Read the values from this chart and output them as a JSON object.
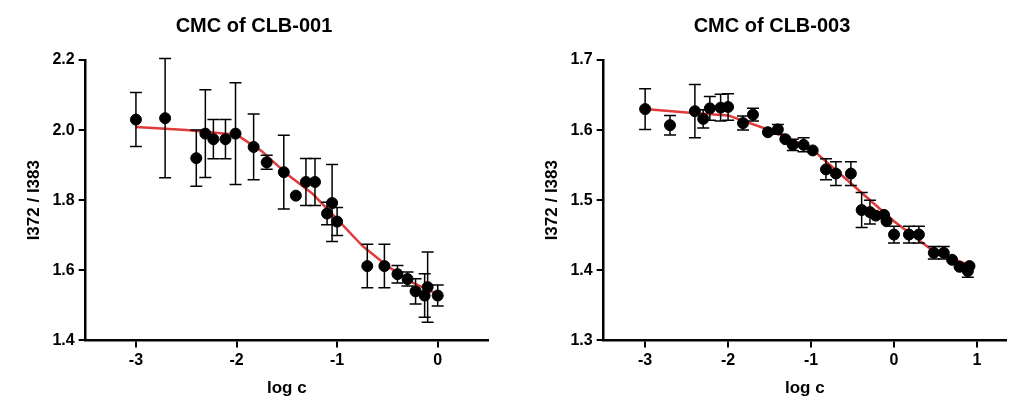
{
  "chart_data": [
    {
      "type": "scatter",
      "title": "CMC of CLB-001",
      "xlabel": "log c",
      "ylabel": "I372 / I383",
      "xlim": [
        -3.5,
        0.5
      ],
      "xticks": [
        -3,
        -2,
        -1,
        0
      ],
      "ylim": [
        1.4,
        2.2
      ],
      "yticks": [
        {
          "value": 1.4,
          "label": "1.4"
        },
        {
          "value": 1.6,
          "label": "1.6"
        },
        {
          "value": 1.8,
          "label": "1.8"
        },
        {
          "value": 2,
          "label": "2.0"
        },
        {
          "value": 2.2,
          "label": "2.2"
        }
      ],
      "grid": false,
      "legend": false,
      "series": [
        {
          "marker": "circle",
          "color": "#000000",
          "x": [
            -3.0,
            -2.71,
            -2.4,
            -2.31,
            -2.23,
            -2.11,
            -2.01,
            -1.83,
            -1.7,
            -1.53,
            -1.41,
            -1.31,
            -1.22,
            -1.1,
            -1.05,
            -1.0,
            -0.7,
            -0.53,
            -0.4,
            -0.3,
            -0.22,
            -0.13,
            -0.1,
            0.0
          ],
          "values": [
            2.03,
            2.034,
            1.92,
            1.99,
            1.974,
            1.974,
            1.99,
            1.952,
            1.908,
            1.88,
            1.813,
            1.852,
            1.852,
            1.762,
            1.792,
            1.739,
            1.612,
            1.612,
            1.589,
            1.575,
            1.54,
            1.528,
            1.552,
            1.528
          ],
          "errors": [
            0.077,
            0.17,
            0.08,
            0.125,
            0.056,
            0.056,
            0.145,
            0.094,
            0.02,
            0.105,
            null,
            0.067,
            0.067,
            0.032,
            0.11,
            0.04,
            0.062,
            0.062,
            0.025,
            0.02,
            0.036,
            0.062,
            0.1,
            0.03
          ]
        },
        {
          "type": "line",
          "marker": "none",
          "color": "#e03a3a",
          "x": [
            -3,
            -2.5,
            -2,
            -1.75,
            -1.5,
            -1.25,
            -1,
            -0.75,
            -0.5,
            -0.25,
            0
          ],
          "values": [
            2.009,
            2.0,
            1.987,
            1.94,
            1.875,
            1.82,
            1.746,
            1.67,
            1.612,
            1.565,
            1.531
          ]
        }
      ]
    },
    {
      "type": "scatter",
      "title": "CMC of CLB-003",
      "xlabel": "log c",
      "ylabel": "I372 / I383",
      "xlim": [
        -3.5,
        1.35
      ],
      "xticks": [
        -3,
        -2,
        -1,
        0,
        1
      ],
      "ylim": [
        1.3,
        1.7
      ],
      "yticks": [
        1.3,
        1.4,
        1.5,
        1.6,
        1.7
      ],
      "grid": false,
      "legend": false,
      "series": [
        {
          "marker": "circle",
          "color": "#000000",
          "x": [
            -3.0,
            -2.7,
            -2.4,
            -2.3,
            -2.22,
            -2.09,
            -2.0,
            -1.82,
            -1.7,
            -1.52,
            -1.4,
            -1.31,
            -1.22,
            -1.09,
            -0.98,
            -0.82,
            -0.7,
            -0.52,
            -0.39,
            -0.29,
            -0.22,
            -0.12,
            -0.09,
            0.0,
            0.18,
            0.3,
            0.48,
            0.6,
            0.7,
            0.79,
            0.89,
            0.91
          ],
          "values": [
            1.63,
            1.607,
            1.627,
            1.616,
            1.631,
            1.632,
            1.633,
            1.61,
            1.622,
            1.597,
            1.601,
            1.587,
            1.579,
            1.579,
            1.571,
            1.544,
            1.538,
            1.538,
            1.486,
            1.483,
            1.478,
            1.479,
            1.47,
            1.451,
            1.451,
            1.451,
            1.425,
            1.425,
            1.415,
            1.405,
            1.399,
            1.406
          ],
          "errors": [
            0.029,
            0.014,
            0.038,
            0.013,
            0.017,
            0.019,
            0.019,
            0.01,
            0.009,
            null,
            0.007,
            null,
            0.008,
            0.01,
            null,
            0.015,
            0.017,
            0.017,
            0.025,
            0.017,
            null,
            null,
            null,
            0.012,
            0.012,
            0.012,
            0.009,
            0.009,
            null,
            null,
            0.009,
            null
          ]
        },
        {
          "type": "line",
          "marker": "none",
          "color": "#e03a3a",
          "x": [
            -3,
            -2.5,
            -2,
            -1.5,
            -1,
            -0.5,
            0,
            0.5,
            0.9
          ],
          "values": [
            1.63,
            1.625,
            1.621,
            1.6,
            1.574,
            1.522,
            1.47,
            1.425,
            1.408
          ]
        }
      ]
    }
  ]
}
